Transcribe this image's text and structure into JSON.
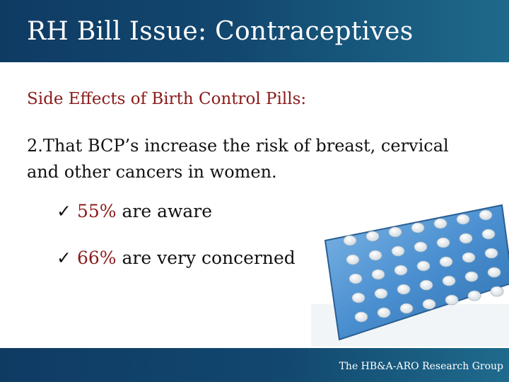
{
  "slide": {
    "title": "RH Bill Issue: Contraceptives",
    "subtitle": "Side Effects of Birth Control Pills:",
    "point": "2.That BCP’s increase the risk of breast, cervical and other cancers in women.",
    "bullets": [
      {
        "check": "✓",
        "percent": "55%",
        "text": " are aware"
      },
      {
        "check": "✓",
        "percent": "66%",
        "text": " are very concerned"
      }
    ],
    "footer": "The HB&A-ARO Research Group"
  },
  "colors": {
    "header": "#12476f",
    "accent_red": "#8b1a1a",
    "pack": "#4a8fd0"
  }
}
